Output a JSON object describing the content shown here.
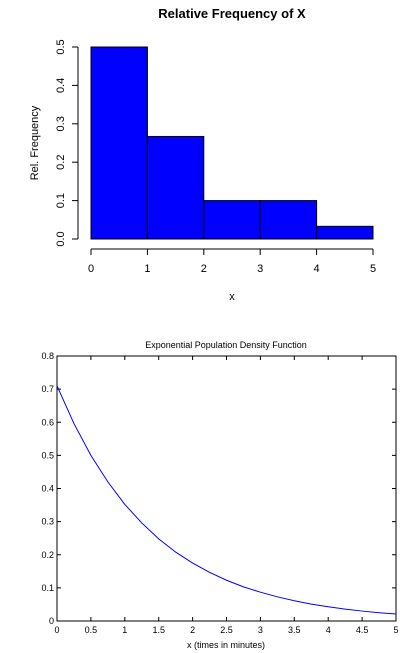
{
  "chart_data": [
    {
      "type": "bar",
      "title": "Relative Frequency of X",
      "xlabel": "x",
      "ylabel": "Rel. Frequency",
      "bins": [
        [
          0,
          1
        ],
        [
          1,
          2
        ],
        [
          2,
          3
        ],
        [
          3,
          4
        ],
        [
          4,
          5
        ]
      ],
      "values": [
        0.5,
        0.267,
        0.1,
        0.1,
        0.033
      ],
      "xticks": [
        0,
        1,
        2,
        3,
        4,
        5
      ],
      "yticks": [
        0.0,
        0.1,
        0.2,
        0.3,
        0.4,
        0.5
      ],
      "xlim": [
        0,
        5
      ],
      "ylim": [
        0,
        0.5
      ],
      "grid": false,
      "bar_color": "#0000ff"
    },
    {
      "type": "line",
      "title": "Exponential Population Density Function",
      "xlabel": "x (times in minutes)",
      "ylabel": "",
      "series": [
        {
          "x": [
            0,
            0.25,
            0.5,
            0.75,
            1,
            1.25,
            1.5,
            1.75,
            2,
            2.25,
            2.5,
            2.75,
            3,
            3.25,
            3.5,
            3.75,
            4,
            4.25,
            4.5,
            4.75,
            5
          ],
          "y": [
            0.71,
            0.596,
            0.5,
            0.42,
            0.352,
            0.296,
            0.248,
            0.208,
            0.175,
            0.147,
            0.123,
            0.103,
            0.087,
            0.073,
            0.061,
            0.051,
            0.043,
            0.036,
            0.03,
            0.025,
            0.021
          ]
        }
      ],
      "xticks": [
        0,
        0.5,
        1,
        1.5,
        2,
        2.5,
        3,
        3.5,
        4,
        4.5,
        5
      ],
      "yticks": [
        0,
        0.1,
        0.2,
        0.3,
        0.4,
        0.5,
        0.6,
        0.7,
        0.8
      ],
      "xlim": [
        0,
        5
      ],
      "ylim": [
        0,
        0.8
      ],
      "grid": false,
      "line_color": "#0000ff"
    }
  ]
}
